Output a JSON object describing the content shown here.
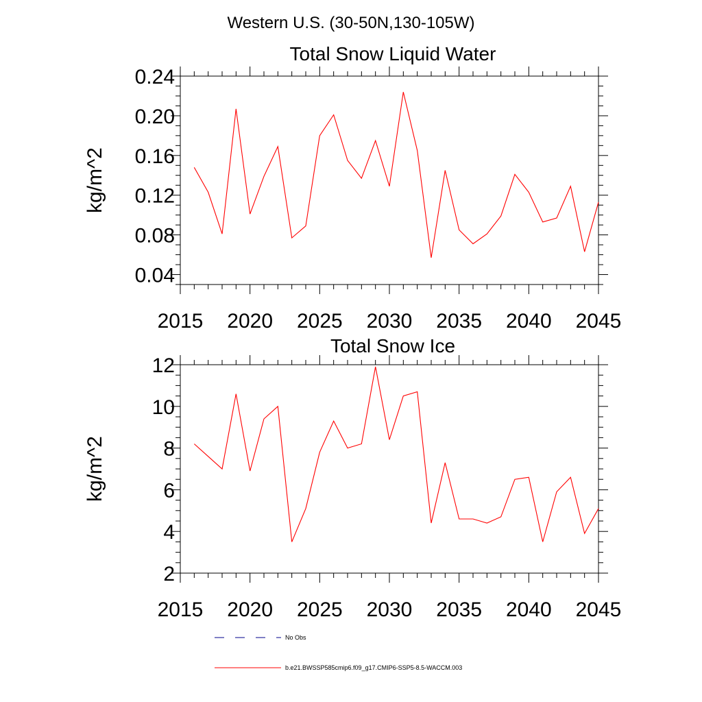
{
  "figure_title": "Western U.S. (30-50N,130-105W)",
  "legend": [
    {
      "label": "No Obs",
      "color": "#00008b",
      "dash": "dashed"
    },
    {
      "label": "b.e21.BWSSP585cmip6.f09_g17.CMIP6-SSP5-8.5-WACCM.003",
      "color": "#ff0000",
      "dash": "solid"
    }
  ],
  "chart_data": [
    {
      "type": "line",
      "title": "Total Snow Liquid Water",
      "xlabel": "",
      "ylabel": "kg/m^2",
      "xlim": [
        2015,
        2045
      ],
      "ylim": [
        0.03,
        0.24
      ],
      "xticks": [
        2015,
        2020,
        2025,
        2030,
        2035,
        2040,
        2045
      ],
      "yticks": [
        0.04,
        0.08,
        0.12,
        0.16,
        0.2,
        0.24
      ],
      "ytick_decimals": 2,
      "grid": false,
      "series": [
        {
          "name": "b.e21.BWSSP585cmip6.f09_g17.CMIP6-SSP5-8.5-WACCM.003",
          "color": "#ff0000",
          "x": [
            2016,
            2017,
            2018,
            2019,
            2020,
            2021,
            2022,
            2023,
            2024,
            2025,
            2026,
            2027,
            2028,
            2029,
            2030,
            2031,
            2032,
            2033,
            2034,
            2035,
            2036,
            2037,
            2038,
            2039,
            2040,
            2041,
            2042,
            2043,
            2044,
            2045
          ],
          "y": [
            0.148,
            0.123,
            0.081,
            0.207,
            0.101,
            0.139,
            0.169,
            0.077,
            0.089,
            0.18,
            0.201,
            0.155,
            0.137,
            0.175,
            0.129,
            0.224,
            0.165,
            0.057,
            0.145,
            0.085,
            0.071,
            0.081,
            0.099,
            0.141,
            0.123,
            0.093,
            0.097,
            0.129,
            0.063,
            0.113
          ]
        }
      ]
    },
    {
      "type": "line",
      "title": "Total Snow Ice",
      "xlabel": "",
      "ylabel": "kg/m^2",
      "xlim": [
        2015,
        2045
      ],
      "ylim": [
        2,
        12
      ],
      "xticks": [
        2015,
        2020,
        2025,
        2030,
        2035,
        2040,
        2045
      ],
      "yticks": [
        2,
        4,
        6,
        8,
        10,
        12
      ],
      "ytick_decimals": 0,
      "grid": false,
      "series": [
        {
          "name": "b.e21.BWSSP585cmip6.f09_g17.CMIP6-SSP5-8.5-WACCM.003",
          "color": "#ff0000",
          "x": [
            2016,
            2017,
            2018,
            2019,
            2020,
            2021,
            2022,
            2023,
            2024,
            2025,
            2026,
            2027,
            2028,
            2029,
            2030,
            2031,
            2032,
            2033,
            2034,
            2035,
            2036,
            2037,
            2038,
            2039,
            2040,
            2041,
            2042,
            2043,
            2044,
            2045
          ],
          "y": [
            8.2,
            7.6,
            7.0,
            10.6,
            6.9,
            9.4,
            10.0,
            3.5,
            5.1,
            7.8,
            9.3,
            8.0,
            8.2,
            11.9,
            8.4,
            10.5,
            10.7,
            4.4,
            7.3,
            4.6,
            4.6,
            4.4,
            4.7,
            6.5,
            6.6,
            3.5,
            5.9,
            6.6,
            3.9,
            5.1
          ]
        }
      ]
    }
  ]
}
